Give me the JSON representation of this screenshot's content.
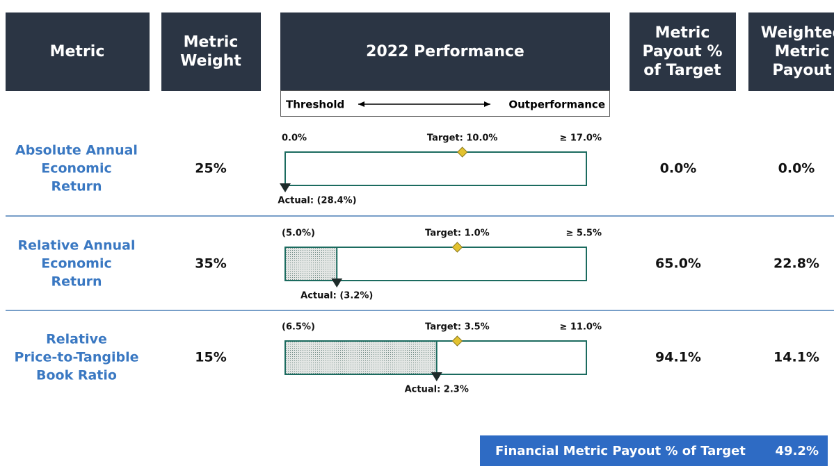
{
  "headers": [
    [
      "Metric"
    ],
    [
      "Metric",
      "Weight"
    ],
    [
      "2022 Performance"
    ],
    [
      "Metric",
      "Payout %",
      "of Target"
    ],
    [
      "Weighted",
      "Metric",
      "Payout"
    ]
  ],
  "scale": {
    "left": "Threshold",
    "right": "Outperformance"
  },
  "rows": [
    {
      "name": [
        "Absolute Annual",
        "Economic",
        "Return"
      ],
      "weight": "25%",
      "performance": {
        "threshold": {
          "value": 0,
          "label": "0.0%"
        },
        "target": {
          "value": 10,
          "label": "Target: 10.0%"
        },
        "max": {
          "value": 17,
          "label": "≥ 17.0%"
        },
        "actual": {
          "value": -28.4,
          "label": "Actual: (28.4%)"
        }
      },
      "payout": "0.0%",
      "weighted": "0.0%"
    },
    {
      "name": [
        "Relative Annual",
        "Economic",
        "Return"
      ],
      "weight": "35%",
      "performance": {
        "threshold": {
          "value": -5,
          "label": "(5.0%)"
        },
        "target": {
          "value": 1,
          "label": "Target: 1.0%"
        },
        "max": {
          "value": 5.5,
          "label": "≥ 5.5%"
        },
        "actual": {
          "value": -3.2,
          "label": "Actual: (3.2%)"
        }
      },
      "payout": "65.0%",
      "weighted": "22.8%"
    },
    {
      "name": [
        "Relative",
        "Price-to-Tangible",
        "Book Ratio"
      ],
      "weight": "15%",
      "performance": {
        "threshold": {
          "value": -6.5,
          "label": "(6.5%)"
        },
        "target": {
          "value": 3.5,
          "label": "Target: 3.5%"
        },
        "max": {
          "value": 11,
          "label": "≥ 11.0%"
        },
        "actual": {
          "value": 2.3,
          "label": "Actual: 2.3%"
        }
      },
      "payout": "94.1%",
      "weighted": "14.1%"
    }
  ],
  "footer": {
    "label": "Financial Metric Payout % of Target",
    "value": "49.2%"
  }
}
